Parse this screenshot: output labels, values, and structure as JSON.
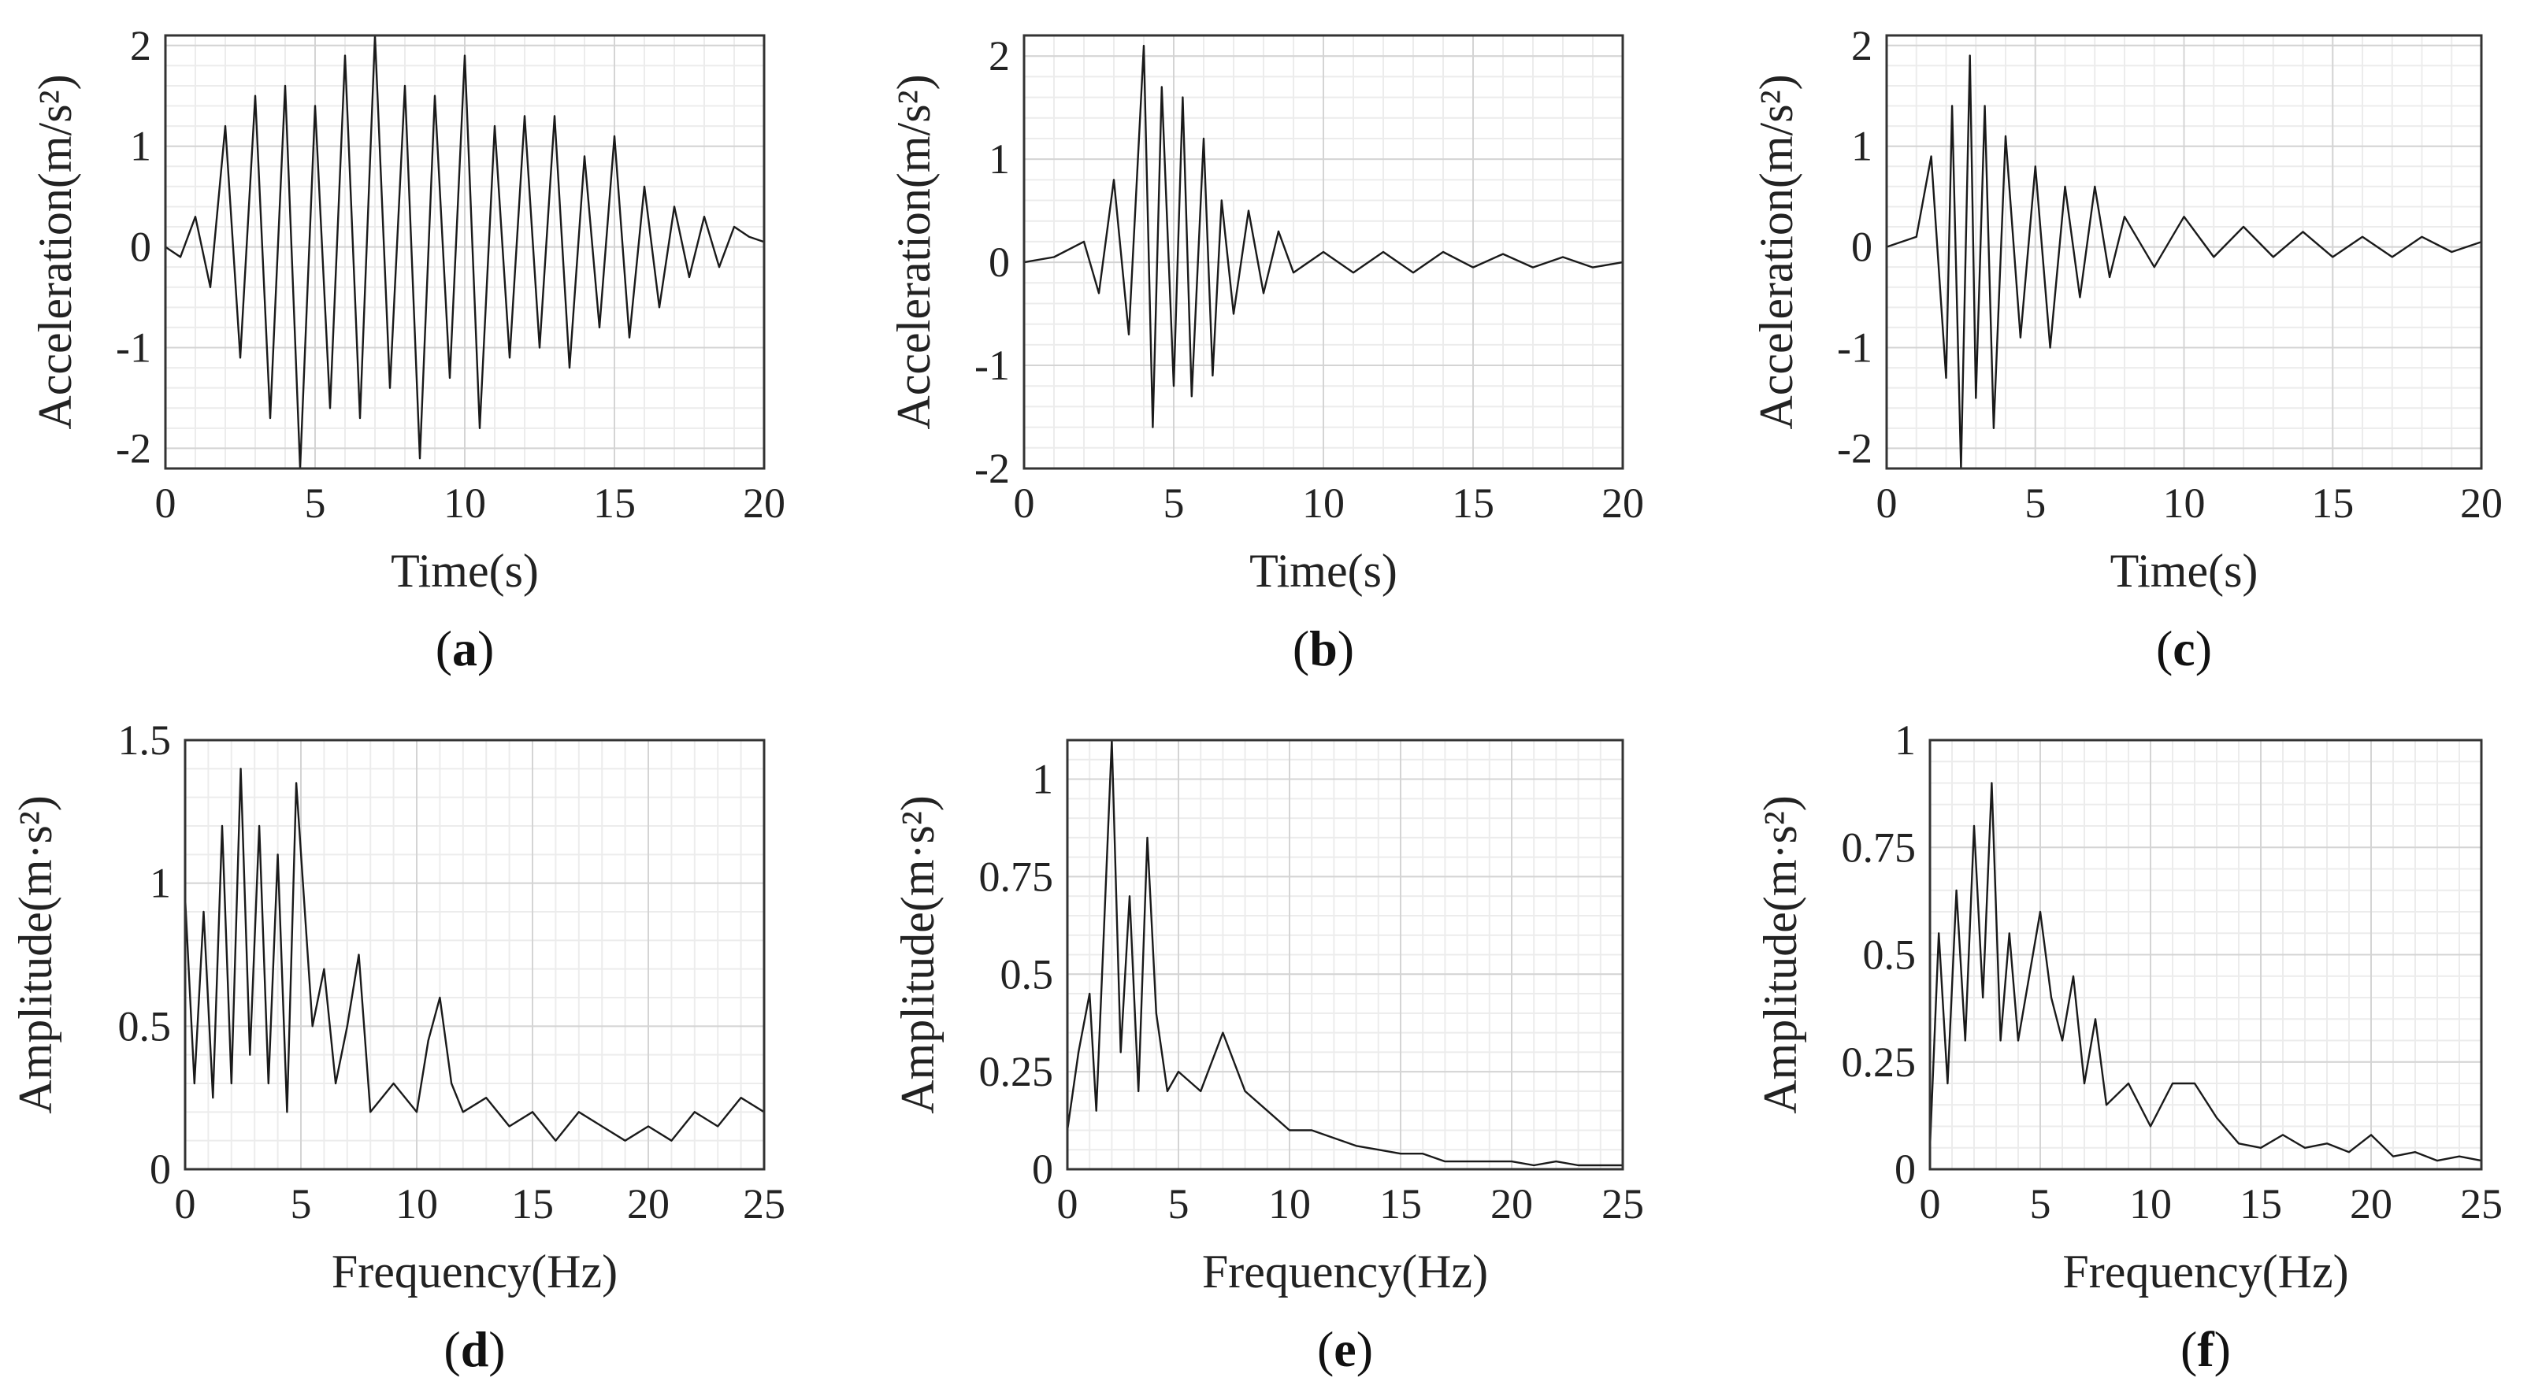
{
  "chart_data": [
    {
      "id": "a",
      "type": "line",
      "panel_label": "a",
      "xlabel": "Time(s)",
      "ylabel": "Acceleration(m/s²)",
      "xlim": [
        0,
        20
      ],
      "ylim": [
        -2.2,
        2.1
      ],
      "xticks": [
        0,
        5,
        10,
        15,
        20
      ],
      "yticks": [
        -2,
        -1,
        0,
        1,
        2
      ],
      "xtick_labels": [
        "0",
        "5",
        "10",
        "15",
        "20"
      ],
      "ytick_labels": [
        "-2",
        "-1",
        "0",
        "1",
        "2"
      ],
      "series": [
        {
          "name": "acceleration",
          "x": [
            0,
            0.5,
            1,
            1.5,
            2,
            2.5,
            3,
            3.5,
            4,
            4.5,
            5,
            5.5,
            6,
            6.5,
            7,
            7.5,
            8,
            8.5,
            9,
            9.5,
            10,
            10.5,
            11,
            11.5,
            12,
            12.5,
            13,
            13.5,
            14,
            14.5,
            15,
            15.5,
            16,
            16.5,
            17,
            17.5,
            18,
            18.5,
            19,
            19.5,
            20
          ],
          "y": [
            0,
            -0.1,
            0.3,
            -0.4,
            1.2,
            -1.1,
            1.5,
            -1.7,
            1.6,
            -2.2,
            1.4,
            -1.6,
            1.9,
            -1.7,
            2.1,
            -1.4,
            1.6,
            -2.1,
            1.5,
            -1.3,
            1.9,
            -1.8,
            1.2,
            -1.1,
            1.3,
            -1.0,
            1.3,
            -1.2,
            0.9,
            -0.8,
            1.1,
            -0.9,
            0.6,
            -0.6,
            0.4,
            -0.3,
            0.3,
            -0.2,
            0.2,
            0.1,
            0.05
          ]
        }
      ]
    },
    {
      "id": "b",
      "type": "line",
      "panel_label": "b",
      "xlabel": "Time(s)",
      "ylabel": "Acceleration(m/s²)",
      "xlim": [
        0,
        20
      ],
      "ylim": [
        -2,
        2.2
      ],
      "xticks": [
        0,
        5,
        10,
        15,
        20
      ],
      "yticks": [
        -2,
        -1,
        0,
        1,
        2
      ],
      "xtick_labels": [
        "0",
        "5",
        "10",
        "15",
        "20"
      ],
      "ytick_labels": [
        "-2",
        "-1",
        "0",
        "1",
        "2"
      ],
      "series": [
        {
          "name": "acceleration",
          "x": [
            0,
            1,
            2,
            2.5,
            3,
            3.5,
            4,
            4.3,
            4.6,
            5,
            5.3,
            5.6,
            6,
            6.3,
            6.6,
            7,
            7.5,
            8,
            8.5,
            9,
            10,
            11,
            12,
            13,
            14,
            15,
            16,
            17,
            18,
            19,
            20
          ],
          "y": [
            0,
            0.05,
            0.2,
            -0.3,
            0.8,
            -0.7,
            2.1,
            -1.6,
            1.7,
            -1.2,
            1.6,
            -1.3,
            1.2,
            -1.1,
            0.6,
            -0.5,
            0.5,
            -0.3,
            0.3,
            -0.1,
            0.1,
            -0.1,
            0.1,
            -0.1,
            0.1,
            -0.05,
            0.08,
            -0.05,
            0.05,
            -0.05,
            0
          ]
        }
      ]
    },
    {
      "id": "c",
      "type": "line",
      "panel_label": "c",
      "xlabel": "Time(s)",
      "ylabel": "Acceleration(m/s²)",
      "xlim": [
        0,
        20
      ],
      "ylim": [
        -2.2,
        2.1
      ],
      "xticks": [
        0,
        5,
        10,
        15,
        20
      ],
      "yticks": [
        -2,
        -1,
        0,
        1,
        2
      ],
      "xtick_labels": [
        "0",
        "5",
        "10",
        "15",
        "20"
      ],
      "ytick_labels": [
        "-2",
        "-1",
        "0",
        "1",
        "2"
      ],
      "series": [
        {
          "name": "acceleration",
          "x": [
            0,
            1,
            1.5,
            2,
            2.2,
            2.5,
            2.8,
            3,
            3.3,
            3.6,
            4,
            4.5,
            5,
            5.5,
            6,
            6.5,
            7,
            7.5,
            8,
            9,
            10,
            11,
            12,
            13,
            14,
            15,
            16,
            17,
            18,
            19,
            20
          ],
          "y": [
            0,
            0.1,
            0.9,
            -1.3,
            1.4,
            -2.2,
            1.9,
            -1.5,
            1.4,
            -1.8,
            1.1,
            -0.9,
            0.8,
            -1.0,
            0.6,
            -0.5,
            0.6,
            -0.3,
            0.3,
            -0.2,
            0.3,
            -0.1,
            0.2,
            -0.1,
            0.15,
            -0.1,
            0.1,
            -0.1,
            0.1,
            -0.05,
            0.05
          ]
        }
      ]
    },
    {
      "id": "d",
      "type": "line",
      "panel_label": "d",
      "xlabel": "Frequency(Hz)",
      "ylabel": "Amplitude(m·s²)",
      "xlim": [
        0,
        25
      ],
      "ylim": [
        0,
        1.5
      ],
      "xticks": [
        0,
        5,
        10,
        15,
        20,
        25
      ],
      "yticks": [
        0,
        0.5,
        1,
        1.5
      ],
      "xtick_labels": [
        "0",
        "5",
        "10",
        "15",
        "20",
        "25"
      ],
      "ytick_labels": [
        "0",
        "0.5",
        "1",
        "1.5"
      ],
      "series": [
        {
          "name": "amplitude",
          "x": [
            0,
            0.4,
            0.8,
            1.2,
            1.6,
            2,
            2.4,
            2.8,
            3.2,
            3.6,
            4,
            4.4,
            4.8,
            5.5,
            6,
            6.5,
            7,
            7.5,
            8,
            9,
            10,
            10.5,
            11,
            11.5,
            12,
            13,
            14,
            15,
            16,
            17,
            18,
            19,
            20,
            21,
            22,
            23,
            24,
            25
          ],
          "y": [
            0.95,
            0.3,
            0.9,
            0.25,
            1.2,
            0.3,
            1.4,
            0.4,
            1.2,
            0.3,
            1.1,
            0.2,
            1.35,
            0.5,
            0.7,
            0.3,
            0.5,
            0.75,
            0.2,
            0.3,
            0.2,
            0.45,
            0.6,
            0.3,
            0.2,
            0.25,
            0.15,
            0.2,
            0.1,
            0.2,
            0.15,
            0.1,
            0.15,
            0.1,
            0.2,
            0.15,
            0.25,
            0.2
          ]
        }
      ]
    },
    {
      "id": "e",
      "type": "line",
      "panel_label": "e",
      "xlabel": "Frequency(Hz)",
      "ylabel": "Amplitude(m·s²)",
      "xlim": [
        0,
        25
      ],
      "ylim": [
        0,
        1.1
      ],
      "xticks": [
        0,
        5,
        10,
        15,
        20,
        25
      ],
      "yticks": [
        0,
        0.25,
        0.5,
        0.75,
        1
      ],
      "xtick_labels": [
        "0",
        "5",
        "10",
        "15",
        "20",
        "25"
      ],
      "ytick_labels": [
        "0",
        "0.25",
        "0.5",
        "0.75",
        "1"
      ],
      "series": [
        {
          "name": "amplitude",
          "x": [
            0,
            0.5,
            1,
            1.3,
            1.6,
            2,
            2.4,
            2.8,
            3.2,
            3.6,
            4,
            4.5,
            5,
            6,
            7,
            8,
            9,
            10,
            11,
            12,
            13,
            14,
            15,
            16,
            17,
            18,
            19,
            20,
            21,
            22,
            23,
            24,
            25
          ],
          "y": [
            0.1,
            0.3,
            0.45,
            0.15,
            0.55,
            1.1,
            0.3,
            0.7,
            0.2,
            0.85,
            0.4,
            0.2,
            0.25,
            0.2,
            0.35,
            0.2,
            0.15,
            0.1,
            0.1,
            0.08,
            0.06,
            0.05,
            0.04,
            0.04,
            0.02,
            0.02,
            0.02,
            0.02,
            0.01,
            0.02,
            0.01,
            0.01,
            0.01
          ]
        }
      ]
    },
    {
      "id": "f",
      "type": "line",
      "panel_label": "f",
      "xlabel": "Frequency(Hz)",
      "ylabel": "Amplitude(m·s²)",
      "xlim": [
        0,
        25
      ],
      "ylim": [
        0,
        1
      ],
      "xticks": [
        0,
        5,
        10,
        15,
        20,
        25
      ],
      "yticks": [
        0,
        0.25,
        0.5,
        0.75,
        1
      ],
      "xtick_labels": [
        "0",
        "5",
        "10",
        "15",
        "20",
        "25"
      ],
      "ytick_labels": [
        "0",
        "0.25",
        "0.5",
        "0.75",
        "1"
      ],
      "series": [
        {
          "name": "amplitude",
          "x": [
            0,
            0.4,
            0.8,
            1.2,
            1.6,
            2,
            2.4,
            2.8,
            3.2,
            3.6,
            4,
            4.5,
            5,
            5.5,
            6,
            6.5,
            7,
            7.5,
            8,
            9,
            10,
            11,
            12,
            13,
            14,
            15,
            16,
            17,
            18,
            19,
            20,
            21,
            22,
            23,
            24,
            25
          ],
          "y": [
            0.05,
            0.55,
            0.2,
            0.65,
            0.3,
            0.8,
            0.4,
            0.9,
            0.3,
            0.55,
            0.3,
            0.45,
            0.6,
            0.4,
            0.3,
            0.45,
            0.2,
            0.35,
            0.15,
            0.2,
            0.1,
            0.2,
            0.2,
            0.12,
            0.06,
            0.05,
            0.08,
            0.05,
            0.06,
            0.04,
            0.08,
            0.03,
            0.04,
            0.02,
            0.03,
            0.02
          ]
        }
      ]
    }
  ]
}
